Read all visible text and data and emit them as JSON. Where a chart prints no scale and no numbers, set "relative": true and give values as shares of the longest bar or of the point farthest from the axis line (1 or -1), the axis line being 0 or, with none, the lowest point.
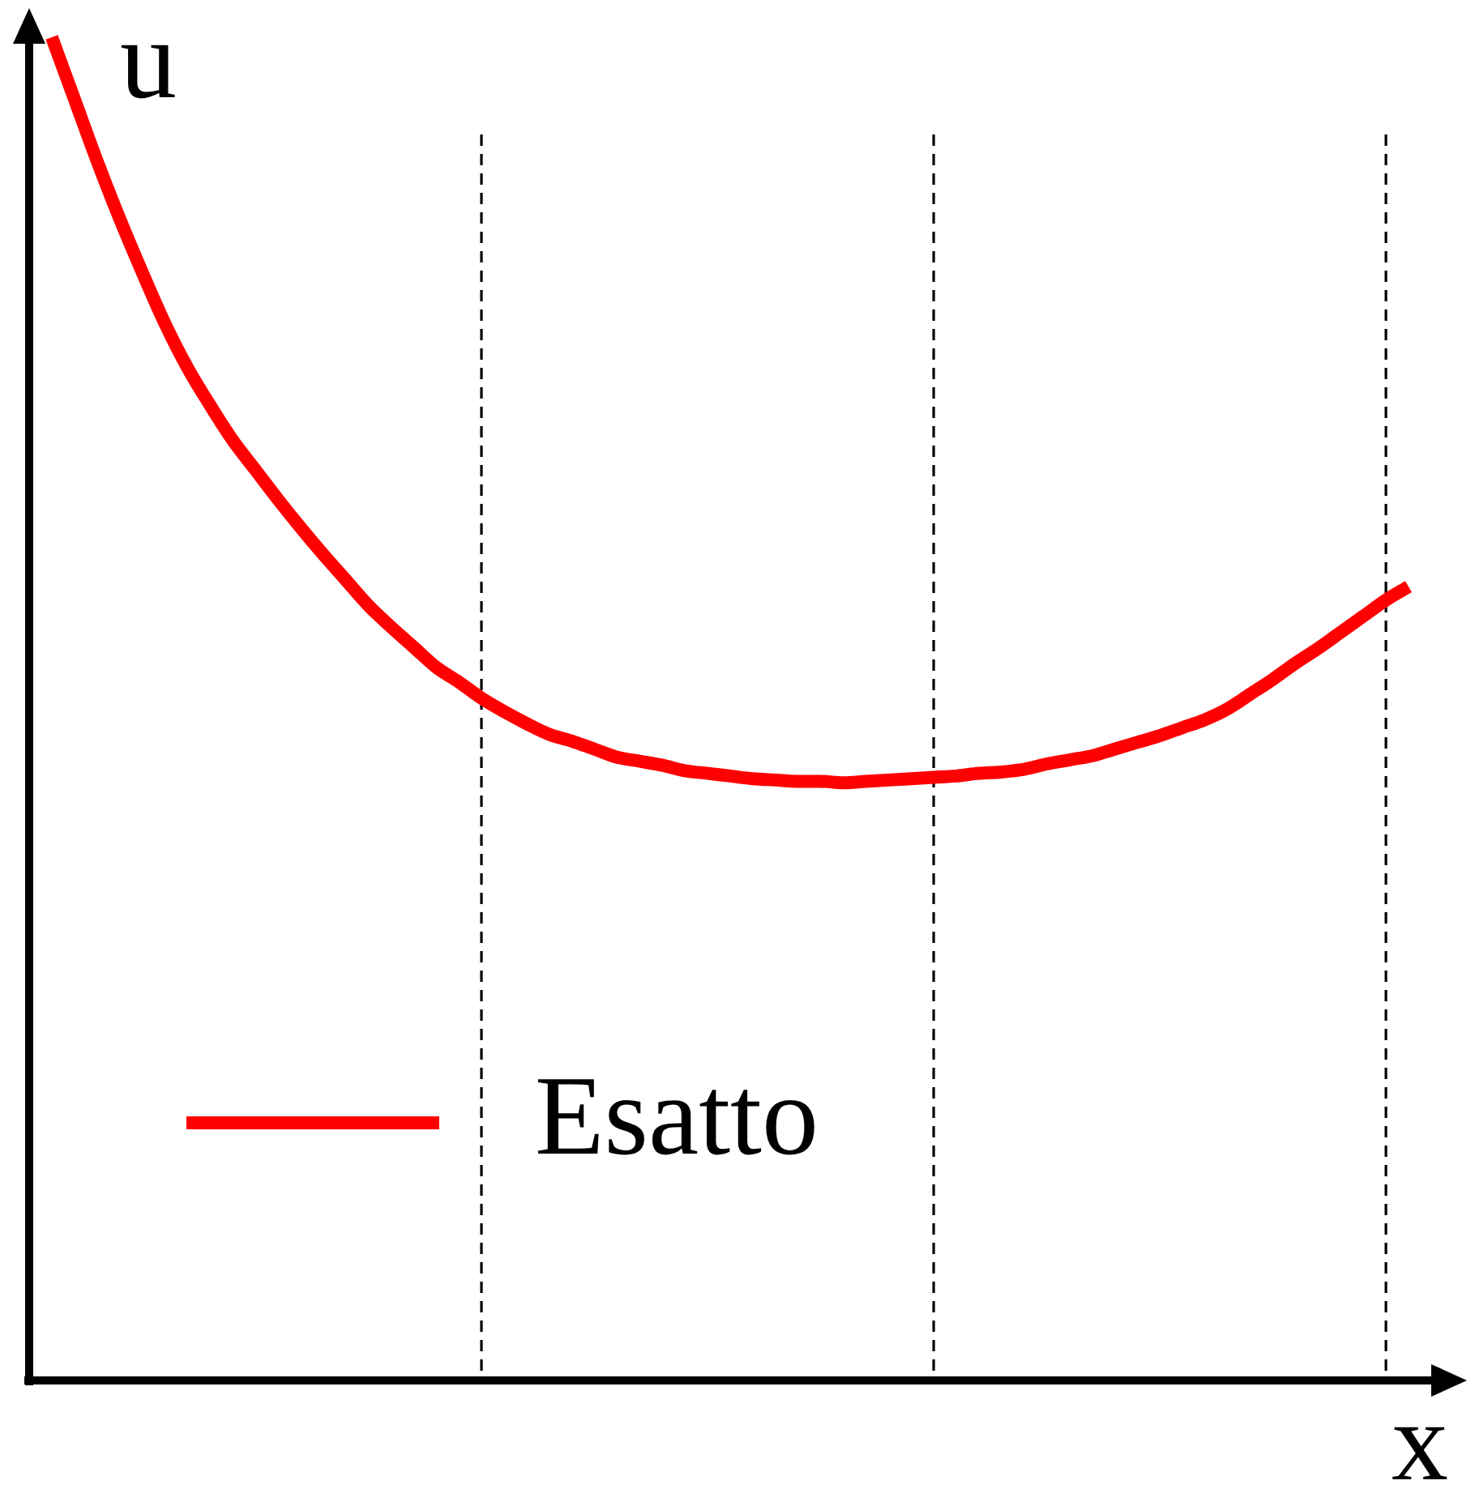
{
  "chart_data": {
    "type": "line",
    "xlabel": "x",
    "ylabel": "u",
    "relative": true,
    "tick_labels": false,
    "legend": "bottom left",
    "marker": "none",
    "grid": "x",
    "categories": [
      null,
      null,
      null,
      null,
      null,
      null,
      null,
      null,
      null,
      null,
      null,
      null,
      null,
      null,
      null,
      null,
      null,
      null,
      null,
      null,
      null,
      null,
      null,
      null,
      null,
      null,
      null,
      null,
      null,
      null,
      null,
      null,
      null,
      null,
      null,
      null,
      null,
      null,
      null,
      null,
      null,
      null,
      null,
      null,
      null,
      null,
      null,
      null,
      null,
      null,
      null,
      null,
      null,
      null,
      null,
      null,
      null,
      null,
      null,
      null,
      null,
      null
    ],
    "series": [
      {
        "name": "Esatto",
        "color": "#ff0000",
        "values": [
          null,
          1,
          0.954,
          0.908,
          0.865,
          0.825,
          0.787,
          0.754,
          0.726,
          0.7,
          0.678,
          0.656,
          0.635,
          0.615,
          0.596,
          0.577,
          0.561,
          0.546,
          0.531,
          0.52,
          0.508,
          0.498,
          0.489,
          0.481,
          0.476,
          0.47,
          0.464,
          0.461,
          0.458,
          0.454,
          0.452,
          0.45,
          0.448,
          0.447,
          0.446,
          0.446,
          0.445,
          0.446,
          0.447,
          0.448,
          0.449,
          0.45,
          0.452,
          0.453,
          0.455,
          0.459,
          0.462,
          0.465,
          0.47,
          0.475,
          0.48,
          0.486,
          0.492,
          0.5,
          0.511,
          0.522,
          0.534,
          0.545,
          0.557,
          0.569,
          0.581,
          0.591
        ]
      }
    ]
  }
}
